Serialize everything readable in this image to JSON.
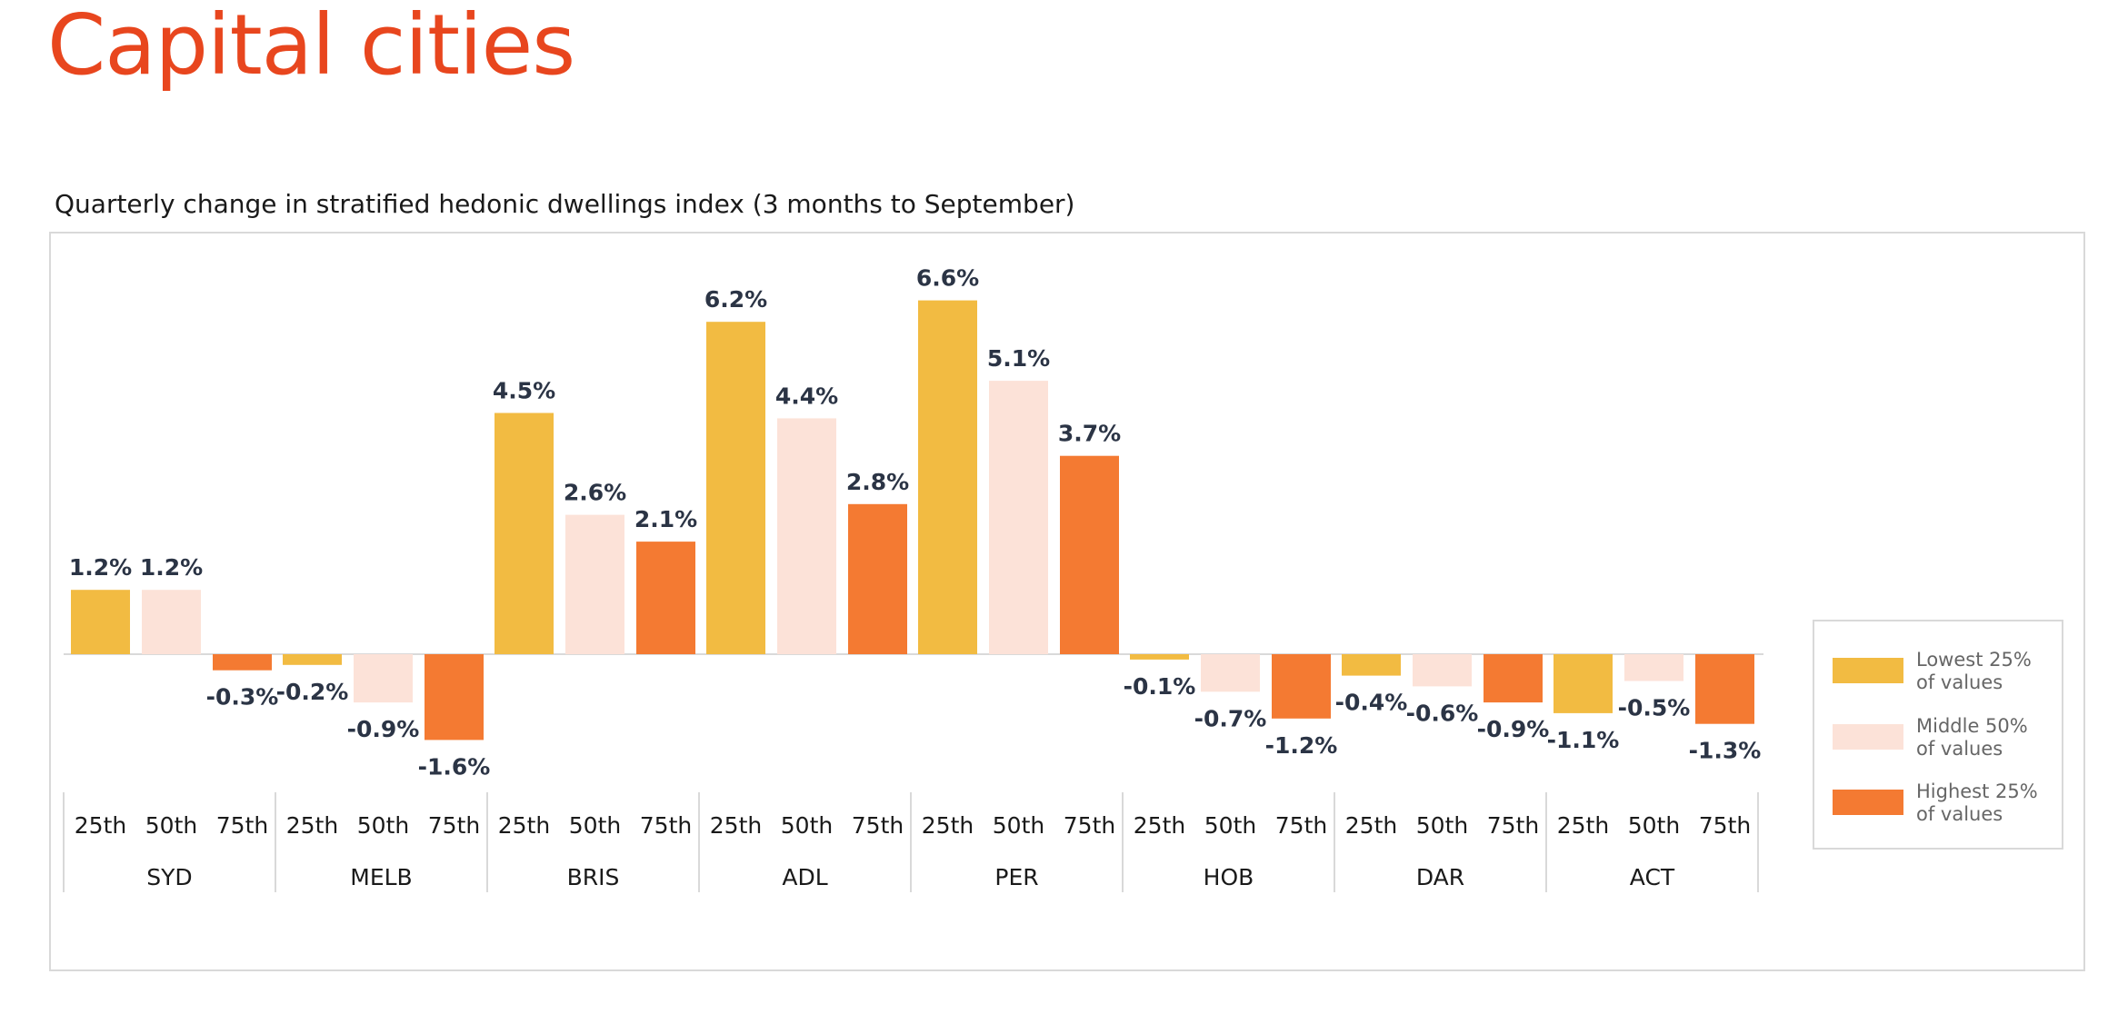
{
  "title": "Capital cities",
  "chart_data": {
    "type": "bar",
    "title": "Quarterly change in stratified hedonic dwellings index (3 months to September)",
    "groups": [
      "SYD",
      "MELB",
      "BRIS",
      "ADL",
      "PER",
      "HOB",
      "DAR",
      "ACT"
    ],
    "subcategories": [
      "25th",
      "50th",
      "75th"
    ],
    "series": [
      {
        "name": "Lowest 25% of values",
        "color": "#f2bb42",
        "values": [
          1.2,
          -0.2,
          4.5,
          6.2,
          6.6,
          -0.1,
          -0.4,
          -1.1
        ]
      },
      {
        "name": "Middle 50% of values",
        "color": "#fce2d8",
        "values": [
          1.2,
          -0.9,
          2.6,
          4.4,
          5.1,
          -0.7,
          -0.6,
          -0.5
        ]
      },
      {
        "name": "Highest 25% of values",
        "color": "#f47a32",
        "values": [
          -0.3,
          -1.6,
          2.1,
          2.8,
          3.7,
          -1.2,
          -0.9,
          -1.3
        ]
      }
    ],
    "value_suffix": "%",
    "legend_position": "right",
    "grid": false
  },
  "legend": [
    {
      "line1": "Lowest 25%",
      "line2": "of values",
      "color": "#f2bb42"
    },
    {
      "line1": "Middle 50%",
      "line2": "of values",
      "color": "#fce2d8"
    },
    {
      "line1": "Highest 25%",
      "line2": "of values",
      "color": "#f47a32"
    }
  ]
}
